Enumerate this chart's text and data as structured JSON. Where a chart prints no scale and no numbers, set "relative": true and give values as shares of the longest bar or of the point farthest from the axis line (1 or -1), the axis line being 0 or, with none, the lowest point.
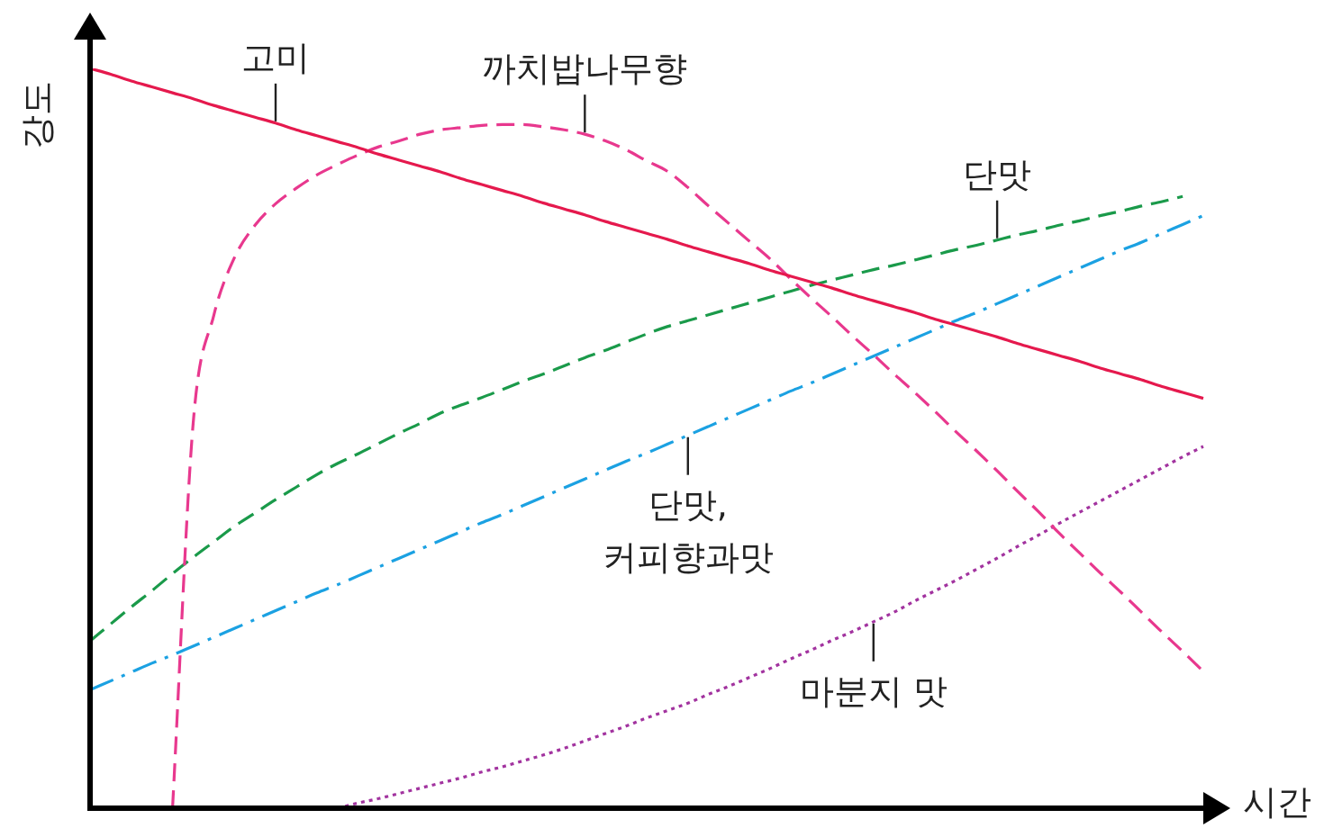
{
  "chart_data": {
    "type": "line",
    "relative": true,
    "xlabel": "시간",
    "ylabel": "강도",
    "marker": "none",
    "categories": [
      null,
      null,
      null,
      null,
      null,
      null,
      null,
      null,
      null,
      null,
      null,
      null,
      null,
      null,
      null,
      null,
      null,
      null,
      null,
      null,
      null,
      null,
      null,
      null,
      null,
      null,
      null,
      null,
      null,
      null,
      null,
      null,
      null,
      null,
      null,
      null,
      null,
      null,
      null,
      null,
      null,
      null,
      null,
      null,
      null,
      null,
      null,
      null,
      null,
      null,
      null,
      null,
      null,
      null,
      null
    ],
    "series": [
      {
        "name": "고미",
        "color": "#e5194d",
        "line_style": "solid",
        "values": [
          1,
          0.992,
          0.983,
          0.975,
          0.967,
          0.959,
          0.95,
          0.942,
          0.934,
          0.926,
          0.917,
          0.909,
          0.901,
          0.893,
          0.884,
          0.876,
          0.868,
          0.86,
          0.851,
          0.843,
          0.835,
          0.827,
          0.818,
          0.81,
          0.802,
          0.793,
          0.785,
          0.777,
          0.769,
          0.76,
          0.752,
          0.744,
          0.736,
          0.727,
          0.719,
          0.711,
          0.703,
          0.694,
          0.686,
          0.678,
          0.67,
          0.661,
          0.653,
          0.645,
          0.637,
          0.628,
          0.62,
          0.612,
          0.604,
          0.595,
          0.587,
          0.579,
          0.57,
          0.562,
          0.554
        ]
      },
      {
        "name": "까치밥나무향",
        "color": "#e8388e",
        "line_style": "dashed",
        "values": [
          null,
          null,
          null,
          null,
          0,
          0.52,
          0.666,
          0.744,
          0.788,
          0.817,
          0.838,
          0.856,
          0.87,
          0.883,
          0.894,
          0.902,
          0.911,
          0.917,
          0.92,
          0.923,
          0.924,
          0.924,
          0.921,
          0.917,
          0.911,
          0.902,
          0.89,
          0.875,
          0.861,
          0.839,
          0.814,
          0.79,
          0.766,
          0.742,
          0.715,
          0.689,
          0.664,
          0.638,
          0.613,
          0.587,
          0.562,
          0.536,
          0.509,
          0.483,
          0.456,
          0.428,
          0.401,
          0.372,
          0.345,
          0.318,
          0.292,
          0.265,
          0.238,
          0.212,
          0.185
        ]
      },
      {
        "name": "단맛",
        "color": "#1a9a4a",
        "line_style": "dashed",
        "values": [
          0.226,
          0.249,
          0.272,
          0.294,
          0.317,
          0.339,
          0.36,
          0.381,
          0.399,
          0.417,
          0.434,
          0.451,
          0.466,
          0.479,
          0.493,
          0.507,
          0.52,
          0.534,
          0.545,
          0.555,
          0.566,
          0.577,
          0.587,
          0.598,
          0.609,
          0.619,
          0.63,
          0.641,
          0.651,
          0.659,
          0.667,
          0.675,
          0.683,
          0.691,
          0.699,
          0.707,
          0.714,
          0.721,
          0.728,
          0.734,
          0.741,
          0.748,
          0.755,
          0.761,
          0.768,
          0.775,
          0.781,
          0.788,
          0.794,
          0.801,
          0.807,
          0.814,
          0.82,
          0.827,
          null
        ]
      },
      {
        "name": "단맛, 커피향과맛",
        "color": "#1ba1e2",
        "line_style": "dashdot",
        "values": [
          0.16,
          0.172,
          0.184,
          0.196,
          0.207,
          0.219,
          0.231,
          0.243,
          0.255,
          0.267,
          0.279,
          0.291,
          0.302,
          0.314,
          0.326,
          0.338,
          0.35,
          0.362,
          0.374,
          0.386,
          0.397,
          0.409,
          0.421,
          0.433,
          0.445,
          0.457,
          0.469,
          0.48,
          0.492,
          0.504,
          0.516,
          0.528,
          0.54,
          0.552,
          0.564,
          0.575,
          0.587,
          0.599,
          0.611,
          0.623,
          0.635,
          0.647,
          0.659,
          0.67,
          0.682,
          0.694,
          0.706,
          0.718,
          0.73,
          0.742,
          0.754,
          0.765,
          0.777,
          0.789,
          0.801
        ]
      },
      {
        "name": "마분지 맛",
        "color": "#a2339f",
        "line_style": "dotted",
        "values": [
          null,
          null,
          null,
          null,
          null,
          null,
          null,
          null,
          null,
          null,
          null,
          null,
          0,
          0.007,
          0.013,
          0.02,
          0.027,
          0.034,
          0.041,
          0.049,
          0.056,
          0.064,
          0.072,
          0.081,
          0.091,
          0.101,
          0.111,
          0.122,
          0.132,
          0.142,
          0.154,
          0.165,
          0.177,
          0.189,
          0.202,
          0.214,
          0.227,
          0.239,
          0.252,
          0.265,
          0.28,
          0.294,
          0.308,
          0.323,
          0.338,
          0.354,
          0.369,
          0.385,
          0.4,
          0.415,
          0.43,
          0.445,
          0.46,
          0.475,
          0.489
        ]
      }
    ]
  }
}
